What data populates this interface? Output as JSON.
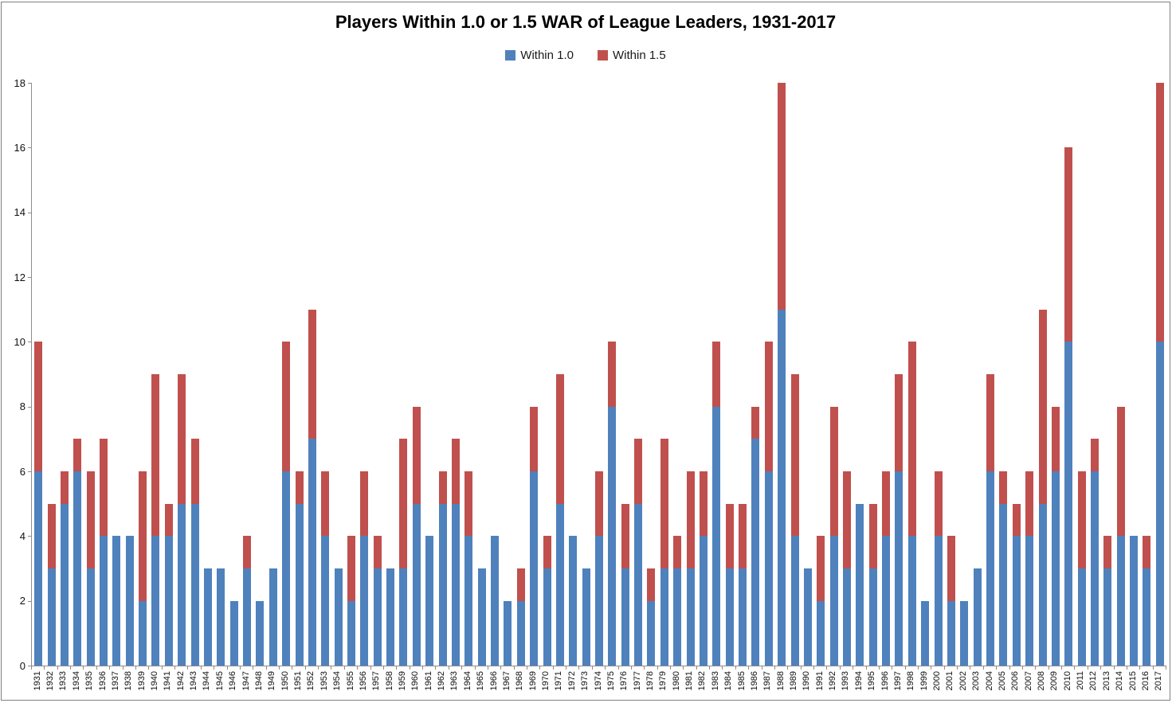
{
  "page": {
    "background": "#ffffff",
    "border_color": "#808080"
  },
  "chart_data": {
    "type": "bar",
    "stacked": true,
    "title": "Players Within 1.0 or 1.5 WAR of League Leaders, 1931-2017",
    "xlabel": "",
    "ylabel": "",
    "ylim": [
      0,
      18
    ],
    "ytick_step": 2,
    "grid": false,
    "axis_color": "#8c8c8c",
    "legend_position": "top",
    "categories": [
      "1931",
      "1932",
      "1933",
      "1934",
      "1935",
      "1936",
      "1937",
      "1938",
      "1939",
      "1940",
      "1941",
      "1942",
      "1943",
      "1944",
      "1945",
      "1946",
      "1947",
      "1948",
      "1949",
      "1950",
      "1951",
      "1952",
      "1953",
      "1954",
      "1955",
      "1956",
      "1957",
      "1958",
      "1959",
      "1960",
      "1961",
      "1962",
      "1963",
      "1964",
      "1965",
      "1966",
      "1967",
      "1968",
      "1969",
      "1970",
      "1971",
      "1972",
      "1973",
      "1974",
      "1975",
      "1976",
      "1977",
      "1978",
      "1979",
      "1980",
      "1981",
      "1982",
      "1983",
      "1984",
      "1985",
      "1986",
      "1987",
      "1988",
      "1989",
      "1990",
      "1991",
      "1992",
      "1993",
      "1994",
      "1995",
      "1996",
      "1997",
      "1998",
      "1999",
      "2000",
      "2001",
      "2002",
      "2003",
      "2004",
      "2005",
      "2006",
      "2007",
      "2008",
      "2009",
      "2010",
      "2011",
      "2012",
      "2013",
      "2014",
      "2015",
      "2016",
      "2017"
    ],
    "series": [
      {
        "name": "Within 1.0",
        "color": "#4F81BD",
        "values": [
          6,
          3,
          5,
          6,
          3,
          4,
          4,
          4,
          2,
          4,
          4,
          5,
          5,
          3,
          3,
          2,
          3,
          2,
          3,
          6,
          5,
          7,
          4,
          3,
          2,
          4,
          3,
          3,
          3,
          5,
          4,
          5,
          5,
          4,
          3,
          4,
          2,
          2,
          6,
          3,
          5,
          4,
          3,
          4,
          8,
          3,
          5,
          2,
          3,
          3,
          3,
          4,
          8,
          3,
          3,
          7,
          6,
          11,
          4,
          3,
          2,
          4,
          3,
          5,
          3,
          4,
          6,
          4,
          2,
          4,
          2,
          2,
          3,
          6,
          5,
          4,
          4,
          5,
          6,
          10,
          3,
          6,
          3,
          4,
          4,
          3,
          10
        ]
      },
      {
        "name": "Within 1.5",
        "color": "#C0504D",
        "values": [
          4,
          2,
          1,
          1,
          3,
          3,
          0,
          0,
          4,
          5,
          1,
          4,
          2,
          0,
          0,
          0,
          1,
          0,
          0,
          4,
          1,
          4,
          2,
          0,
          2,
          2,
          1,
          0,
          4,
          3,
          0,
          1,
          2,
          2,
          0,
          0,
          0,
          1,
          2,
          1,
          4,
          0,
          0,
          2,
          2,
          2,
          2,
          1,
          4,
          1,
          3,
          2,
          2,
          2,
          2,
          1,
          4,
          7,
          5,
          0,
          2,
          4,
          3,
          0,
          2,
          2,
          3,
          6,
          0,
          2,
          2,
          0,
          0,
          3,
          1,
          1,
          2,
          6,
          2,
          6,
          3,
          1,
          1,
          4,
          0,
          1,
          8
        ]
      }
    ],
    "bar_totals": [
      10,
      5,
      6,
      7,
      6,
      7,
      4,
      4,
      6,
      9,
      5,
      9,
      7,
      3,
      3,
      2,
      4,
      2,
      3,
      10,
      6,
      11,
      6,
      3,
      4,
      6,
      4,
      3,
      7,
      8,
      4,
      6,
      7,
      6,
      3,
      4,
      2,
      3,
      8,
      4,
      9,
      4,
      3,
      6,
      10,
      5,
      7,
      3,
      7,
      4,
      6,
      6,
      10,
      5,
      5,
      8,
      10,
      18,
      9,
      3,
      4,
      8,
      6,
      5,
      5,
      6,
      9,
      10,
      2,
      6,
      4,
      2,
      3,
      9,
      6,
      5,
      6,
      11,
      8,
      16,
      6,
      7,
      4,
      8,
      4,
      4,
      18
    ],
    "ytick_labels": [
      "0",
      "2",
      "4",
      "6",
      "8",
      "10",
      "12",
      "14",
      "16",
      "18"
    ]
  }
}
